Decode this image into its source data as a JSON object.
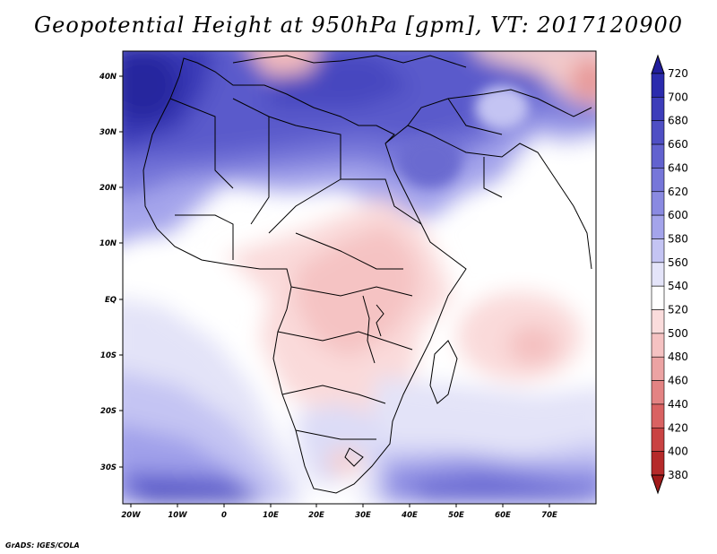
{
  "title": "Geopotential Height at 950hPa [gpm], VT: 2017120900",
  "credit": "GrADS: IGES/COLA",
  "map": {
    "region": "Africa and Middle East",
    "extent": {
      "lon": [
        -22,
        80
      ],
      "lat": [
        -37,
        45
      ]
    },
    "lon_ticks": [
      "20W",
      "10W",
      "0",
      "10E",
      "20E",
      "30E",
      "40E",
      "50E",
      "60E",
      "70E"
    ],
    "lat_ticks": [
      "40N",
      "30N",
      "20N",
      "10N",
      "EQ",
      "10S",
      "20S",
      "30S"
    ],
    "features": [
      "country-borders",
      "coastlines",
      "lakes",
      "islands"
    ]
  },
  "colorbar": {
    "levels": [
      "720",
      "700",
      "680",
      "660",
      "640",
      "620",
      "600",
      "580",
      "560",
      "540",
      "520",
      "500",
      "480",
      "460",
      "440",
      "420",
      "400",
      "380"
    ],
    "colors": [
      "#211d9c",
      "#2b2bad",
      "#3d3dba",
      "#4f4fc4",
      "#6262cf",
      "#7676d9",
      "#8a8ae1",
      "#a4a4eb",
      "#c4c4f3",
      "#e4e4f9",
      "#ffffff",
      "#fadcdc",
      "#f5c2c2",
      "#eca3a3",
      "#e38383",
      "#d96262",
      "#c94343",
      "#b52a2a",
      "#a11a1a"
    ],
    "units": "gpm"
  },
  "colors": {
    "high_purple": "#2c2ca9",
    "mid_lavender": "#b9b9ec",
    "neutral": "#ffffff",
    "low_pink": "#f4c3c3"
  }
}
